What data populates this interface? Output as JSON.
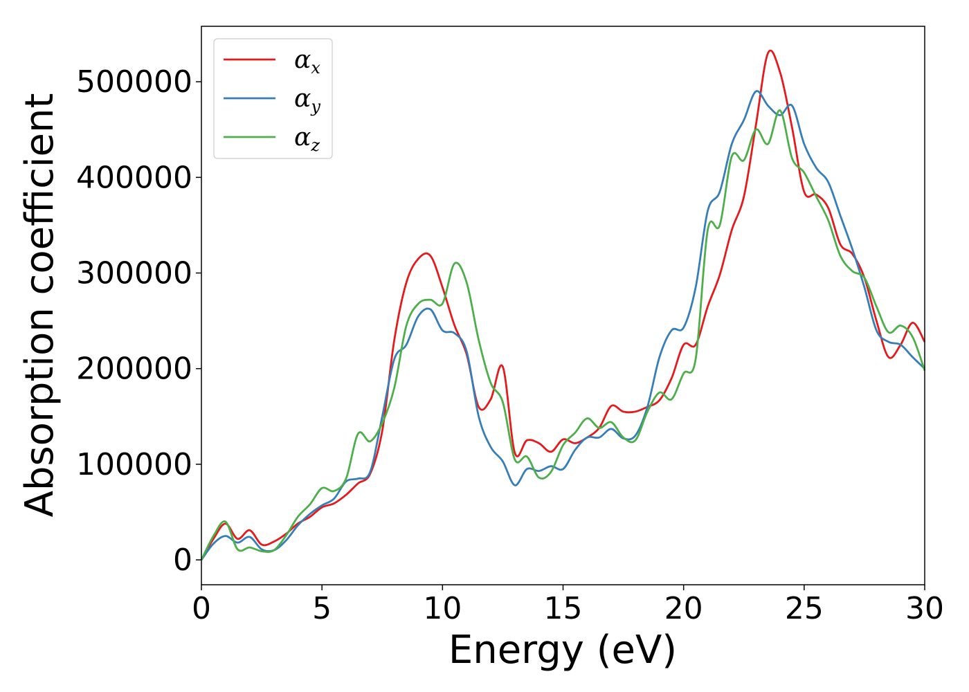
{
  "chart_data": {
    "type": "line",
    "xlabel": "Energy (eV)",
    "ylabel": "Absorption coefficient",
    "xlim": [
      0,
      30
    ],
    "ylim": [
      -26000,
      558000
    ],
    "x_ticks": [
      "0",
      "5",
      "10",
      "15",
      "20",
      "25",
      "30"
    ],
    "y_ticks": [
      "0",
      "100000",
      "200000",
      "300000",
      "400000",
      "500000"
    ],
    "grid": false,
    "legend_position": "top-left",
    "series": [
      {
        "name": "αx",
        "symbol": "α",
        "subscript": "x",
        "color": "#e41a1c",
        "x": [
          0,
          0.5,
          1.0,
          1.5,
          2.0,
          2.5,
          3.0,
          3.5,
          4.0,
          4.5,
          5.0,
          5.5,
          6.0,
          6.5,
          7.0,
          7.5,
          8.0,
          8.5,
          9.0,
          9.5,
          10.0,
          10.5,
          11.0,
          11.5,
          12.0,
          12.5,
          13.0,
          13.5,
          14.0,
          14.5,
          15.0,
          15.5,
          16.0,
          16.5,
          17.0,
          17.5,
          18.0,
          18.5,
          19.0,
          19.5,
          20.0,
          20.5,
          21.0,
          21.5,
          22.0,
          22.5,
          23.0,
          23.5,
          24.0,
          24.5,
          25.0,
          25.5,
          26.0,
          26.5,
          27.0,
          27.5,
          28.0,
          28.5,
          29.0,
          29.5,
          30.0
        ],
        "y": [
          0,
          22000,
          38000,
          22000,
          31000,
          16000,
          19000,
          27000,
          38000,
          45000,
          55000,
          59000,
          68000,
          80000,
          90000,
          135000,
          230000,
          290000,
          315000,
          318000,
          285000,
          245000,
          215000,
          160000,
          168000,
          202000,
          112000,
          125000,
          122000,
          113000,
          126000,
          122000,
          128000,
          138000,
          161000,
          155000,
          155000,
          160000,
          167000,
          190000,
          225000,
          225000,
          265000,
          298000,
          345000,
          380000,
          455000,
          530000,
          510000,
          452000,
          385000,
          382000,
          368000,
          330000,
          320000,
          295000,
          250000,
          212000,
          225000,
          248000,
          228000
        ]
      },
      {
        "name": "αy",
        "symbol": "α",
        "subscript": "y",
        "color": "#377eb8",
        "x": [
          0,
          0.5,
          1.0,
          1.5,
          2.0,
          2.5,
          3.0,
          3.5,
          4.0,
          4.5,
          5.0,
          5.5,
          6.0,
          6.5,
          7.0,
          7.5,
          8.0,
          8.5,
          9.0,
          9.5,
          10.0,
          10.5,
          11.0,
          11.5,
          12.0,
          12.5,
          13.0,
          13.5,
          14.0,
          14.5,
          15.0,
          15.5,
          16.0,
          16.5,
          17.0,
          17.5,
          18.0,
          18.5,
          19.0,
          19.5,
          20.0,
          20.5,
          21.0,
          21.5,
          22.0,
          22.5,
          23.0,
          23.5,
          24.0,
          24.5,
          25.0,
          25.5,
          26.0,
          26.5,
          27.0,
          27.5,
          28.0,
          28.5,
          29.0,
          29.5,
          30.0
        ],
        "y": [
          0,
          17000,
          25000,
          18000,
          24000,
          11000,
          10000,
          20000,
          36000,
          48000,
          57000,
          64000,
          82000,
          85000,
          92000,
          150000,
          210000,
          225000,
          255000,
          262000,
          240000,
          237000,
          218000,
          150000,
          118000,
          103000,
          78000,
          95000,
          93000,
          98000,
          95000,
          115000,
          128000,
          128000,
          137000,
          127000,
          130000,
          160000,
          212000,
          240000,
          243000,
          285000,
          365000,
          385000,
          435000,
          460000,
          490000,
          475000,
          465000,
          475000,
          435000,
          410000,
          395000,
          360000,
          325000,
          285000,
          240000,
          228000,
          225000,
          212000,
          200000
        ]
      },
      {
        "name": "αz",
        "symbol": "α",
        "subscript": "z",
        "color": "#4daf4a",
        "x": [
          0,
          0.5,
          1.0,
          1.5,
          2.0,
          2.5,
          3.0,
          3.5,
          4.0,
          4.5,
          5.0,
          5.5,
          6.0,
          6.5,
          7.0,
          7.5,
          8.0,
          8.5,
          9.0,
          9.5,
          10.0,
          10.5,
          11.0,
          11.5,
          12.0,
          12.5,
          13.0,
          13.5,
          14.0,
          14.5,
          15.0,
          15.5,
          16.0,
          16.5,
          17.0,
          17.5,
          18.0,
          18.5,
          19.0,
          19.5,
          20.0,
          20.5,
          21.0,
          21.5,
          22.0,
          22.5,
          23.0,
          23.5,
          24.0,
          24.5,
          25.0,
          25.5,
          26.0,
          26.5,
          27.0,
          27.5,
          28.0,
          28.5,
          29.0,
          29.5,
          30.0
        ],
        "y": [
          0,
          25000,
          40000,
          11000,
          13000,
          9000,
          10000,
          25000,
          45000,
          58000,
          75000,
          72000,
          85000,
          132000,
          124000,
          143000,
          180000,
          245000,
          268000,
          272000,
          268000,
          310000,
          290000,
          230000,
          185000,
          165000,
          105000,
          108000,
          86000,
          92000,
          120000,
          133000,
          148000,
          138000,
          144000,
          128000,
          125000,
          155000,
          175000,
          168000,
          195000,
          210000,
          345000,
          350000,
          422000,
          418000,
          450000,
          435000,
          470000,
          420000,
          405000,
          380000,
          355000,
          318000,
          302000,
          295000,
          265000,
          238000,
          245000,
          233000,
          198000
        ]
      }
    ]
  }
}
